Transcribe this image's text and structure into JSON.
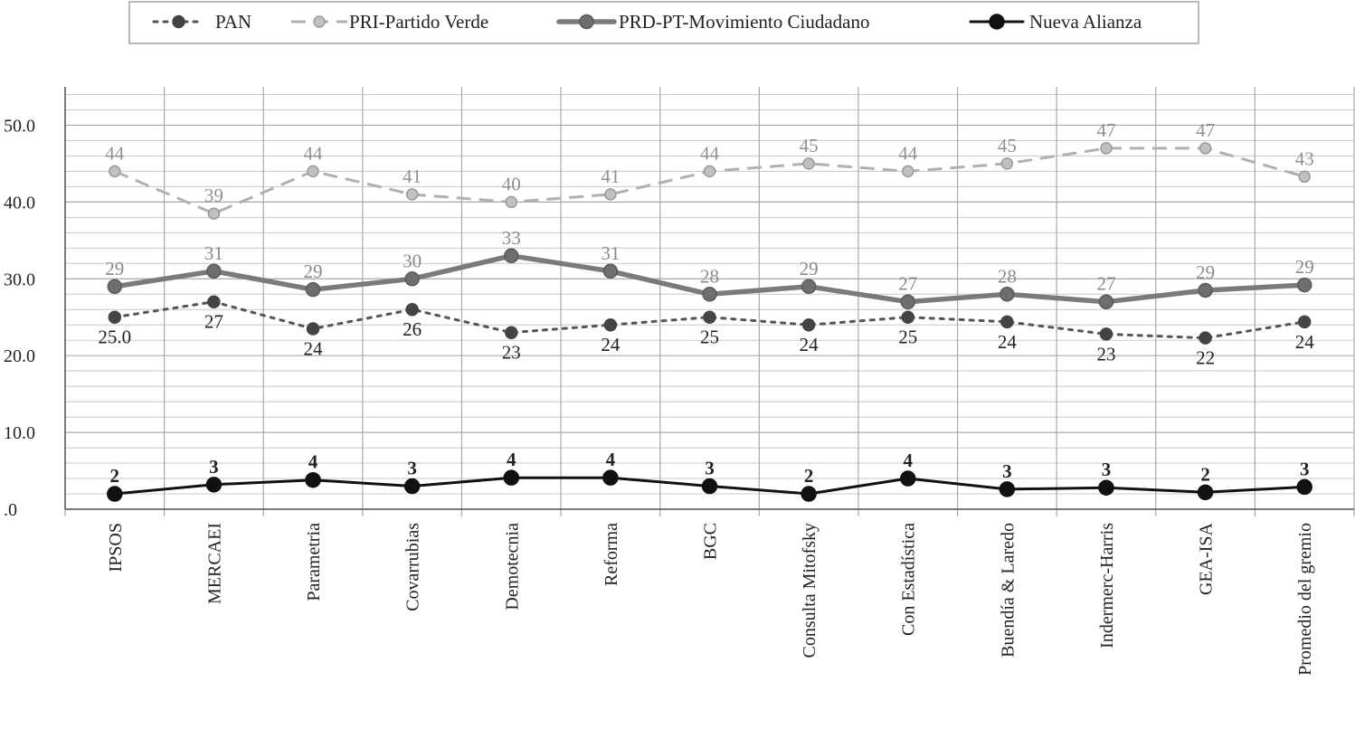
{
  "chart_data": {
    "type": "line",
    "categories": [
      "IPSOS",
      "MERCAEI",
      "Parametria",
      "Covarrubias",
      "Demotecnia",
      "Reforma",
      "BGC",
      "Consulta Mitofsky",
      "Con Estadística",
      "Buendía & Laredo",
      "Indermerc-Harris",
      "GEA-ISA",
      "Promedio del gremio"
    ],
    "series": [
      {
        "name": "PAN",
        "values": [
          25,
          27,
          23.5,
          26,
          23,
          24,
          25,
          24,
          25,
          24.4,
          22.8,
          22.3,
          24.4
        ],
        "labels": [
          "25.0",
          "27",
          "24",
          "26",
          "23",
          "24",
          "25",
          "24",
          "25",
          "24",
          "23",
          "22",
          "24"
        ],
        "color": "#555555",
        "style": "dotted",
        "label_position": "below"
      },
      {
        "name": "PRI-Partido Verde",
        "values": [
          44,
          38.5,
          44,
          41,
          40,
          41,
          44,
          45,
          44,
          45,
          47,
          47,
          43.3
        ],
        "labels": [
          "44",
          "39",
          "44",
          "41",
          "40",
          "41",
          "44",
          "45",
          "44",
          "45",
          "47",
          "47",
          "43"
        ],
        "color": "#b0b0b0",
        "style": "dashed",
        "label_position": "above"
      },
      {
        "name": "PRD-PT-Movimiento Ciudadano",
        "values": [
          29,
          31,
          28.6,
          30,
          33,
          31,
          28,
          29,
          27,
          28,
          27,
          28.5,
          29.2
        ],
        "labels": [
          "29",
          "31",
          "29",
          "30",
          "33",
          "31",
          "28",
          "29",
          "27",
          "28",
          "27",
          "29",
          "29"
        ],
        "color": "#7a7a7a",
        "style": "solid-thick",
        "label_position": "above"
      },
      {
        "name": "Nueva Alianza",
        "values": [
          2,
          3.2,
          3.8,
          3,
          4.1,
          4.1,
          3,
          2,
          4,
          2.6,
          2.8,
          2.2,
          2.9
        ],
        "labels": [
          "2",
          "3",
          "4",
          "3",
          "4",
          "4",
          "3",
          "2",
          "4",
          "3",
          "3",
          "2",
          "3"
        ],
        "color": "#111111",
        "style": "solid",
        "label_position": "above"
      }
    ],
    "y_ticks": [
      ".0",
      "10.0",
      "20.0",
      "30.0",
      "40.0",
      "50.0"
    ],
    "ylim": [
      0,
      55
    ],
    "grid": true,
    "legend_position": "top",
    "title": "",
    "xlabel": "",
    "ylabel": ""
  }
}
